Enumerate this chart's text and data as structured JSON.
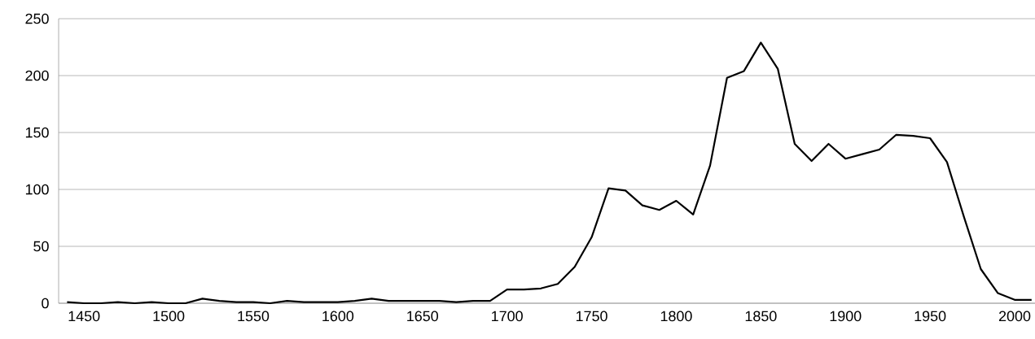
{
  "chart_data": {
    "type": "line",
    "x": [
      1440,
      1450,
      1460,
      1470,
      1480,
      1490,
      1500,
      1510,
      1520,
      1530,
      1540,
      1550,
      1560,
      1570,
      1580,
      1590,
      1600,
      1610,
      1620,
      1630,
      1640,
      1650,
      1660,
      1670,
      1680,
      1690,
      1700,
      1710,
      1720,
      1730,
      1740,
      1750,
      1760,
      1770,
      1780,
      1790,
      1800,
      1810,
      1820,
      1830,
      1840,
      1850,
      1860,
      1870,
      1880,
      1890,
      1900,
      1910,
      1920,
      1930,
      1940,
      1950,
      1960,
      1970,
      1980,
      1990,
      2000,
      2010
    ],
    "series": [
      {
        "color": "#000000",
        "values": [
          1,
          0,
          0,
          1,
          0,
          1,
          0,
          0,
          4,
          2,
          1,
          1,
          0,
          2,
          1,
          1,
          1,
          2,
          4,
          2,
          2,
          2,
          2,
          1,
          2,
          2,
          12,
          12,
          13,
          17,
          32,
          58,
          101,
          99,
          86,
          82,
          90,
          78,
          121,
          198,
          204,
          229,
          206,
          140,
          125,
          140,
          127,
          131,
          135,
          148,
          147,
          145,
          124,
          76,
          30,
          9,
          3,
          3
        ]
      }
    ],
    "xlim": [
      1435,
      2012
    ],
    "ylim": [
      0,
      250
    ],
    "xticks": [
      1450,
      1500,
      1550,
      1600,
      1650,
      1700,
      1750,
      1800,
      1850,
      1900,
      1950,
      2000
    ],
    "yticks": [
      0,
      50,
      100,
      150,
      200,
      250
    ],
    "grid": "y",
    "marker": "none",
    "line_style": "solid"
  }
}
